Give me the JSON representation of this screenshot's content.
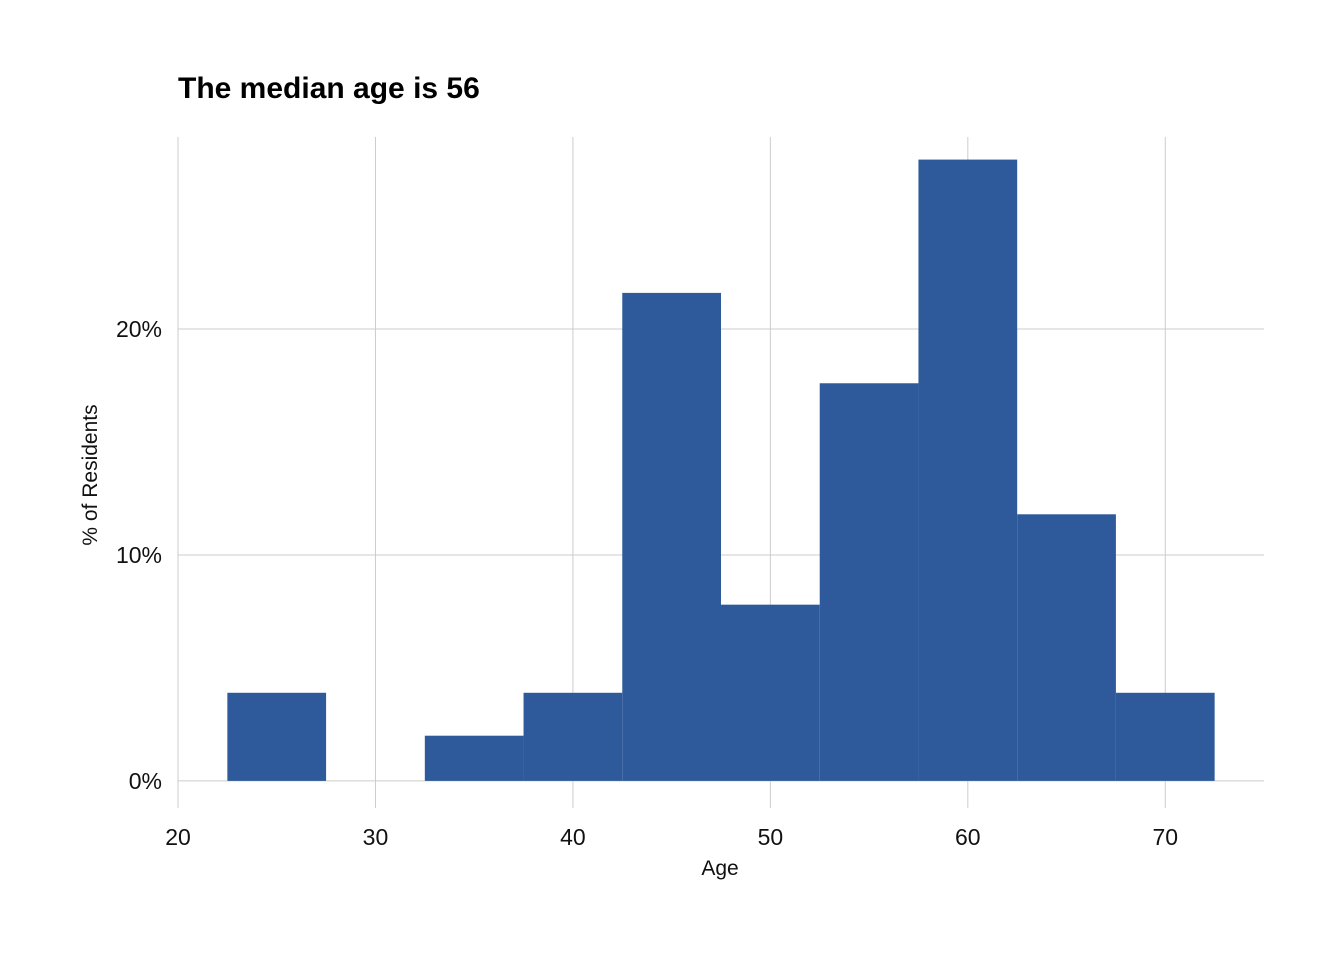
{
  "chart_data": {
    "type": "bar",
    "title": "The median age is 56",
    "xlabel": "Age",
    "ylabel": "% of Residents",
    "xlim": [
      20,
      75
    ],
    "ylim": [
      -1.2,
      28.5
    ],
    "x_ticks": [
      20,
      30,
      40,
      50,
      60,
      70
    ],
    "y_ticks": [
      0,
      10,
      20
    ],
    "y_tick_labels": [
      "0%",
      "10%",
      "20%"
    ],
    "bin_width": 5,
    "bin_centers": [
      25,
      30,
      35,
      40,
      45,
      50,
      55,
      60,
      65,
      70
    ],
    "values": [
      3.9,
      0,
      2.0,
      3.9,
      21.6,
      7.8,
      17.6,
      27.5,
      11.8,
      3.9
    ],
    "bar_color": "#2e5a9b",
    "grid": true
  }
}
